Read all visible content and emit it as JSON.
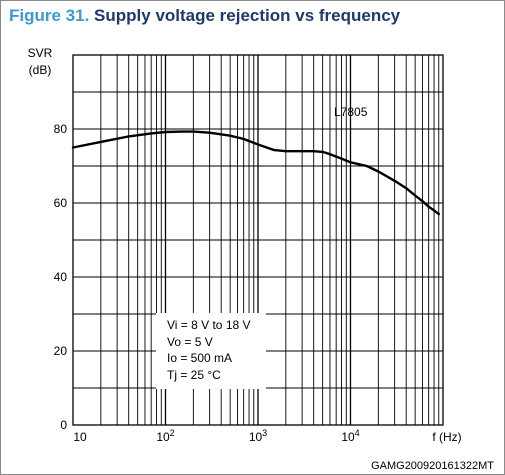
{
  "figure": {
    "number": "Figure 31.",
    "caption": "Supply voltage rejection vs frequency",
    "code": "GAMG200920161322MT"
  },
  "chart_data": {
    "type": "line",
    "title": "Figure 31. Supply voltage rejection vs frequency",
    "ylabel_line1": "SVR",
    "ylabel_line2": "(dB)",
    "xlabel": "f (Hz)",
    "xscale": "log",
    "xlim": [
      10,
      100000
    ],
    "ylim": [
      0,
      100
    ],
    "yticks": [
      0,
      20,
      40,
      60,
      80
    ],
    "ytick_labels": [
      "0",
      "20",
      "40",
      "60",
      "80"
    ],
    "xtick_labels": [
      {
        "base": "10",
        "exp": ""
      },
      {
        "base": "10",
        "exp": "2"
      },
      {
        "base": "10",
        "exp": "3"
      },
      {
        "base": "10",
        "exp": "4"
      }
    ],
    "grid": true,
    "series": [
      {
        "name": "L7805",
        "x": [
          10,
          20,
          40,
          70,
          100,
          150,
          200,
          300,
          500,
          700,
          1000,
          1500,
          2000,
          3000,
          4000,
          5000,
          6000,
          8000,
          10000,
          15000,
          20000,
          30000,
          40000,
          50000,
          60000,
          70000,
          80000,
          90000
        ],
        "y": [
          75,
          76.5,
          78,
          78.8,
          79.2,
          79.3,
          79.3,
          79,
          78.2,
          77.3,
          75.8,
          74.3,
          74,
          74,
          74,
          73.8,
          73.2,
          72,
          71,
          70,
          68.5,
          66,
          64,
          62,
          60.5,
          59,
          58,
          57
        ]
      }
    ],
    "conditions": [
      "Vi = 8 V to 18 V",
      "Vo = 5 V",
      "Io = 500 mA",
      "Tj = 25 °C"
    ]
  }
}
